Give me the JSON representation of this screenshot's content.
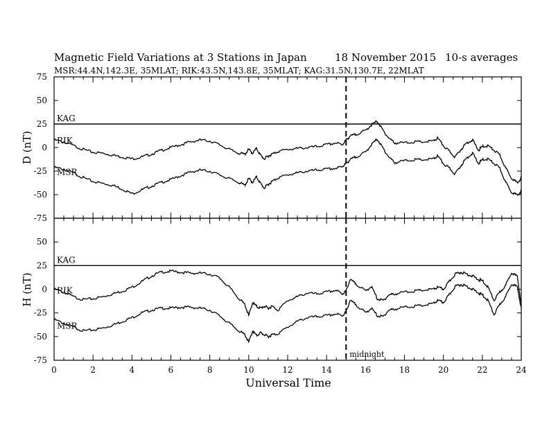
{
  "header": {
    "title": "Magnetic Field Variations at 3 Stations in Japan",
    "date": "18 November 2015",
    "averaging": "10-s averages",
    "stations": "MSR:44.4N,142.3E, 35MLAT;  RIK:43.5N,143.8E, 35MLAT;  KAG:31.5N,130.7E, 22MLAT"
  },
  "chart_data": [
    {
      "type": "line",
      "panel": "D",
      "ylabel": "D (nT)",
      "ylim": [
        -75,
        75
      ],
      "yticks": [
        -75,
        -50,
        -25,
        0,
        25,
        50,
        75
      ],
      "xlim": [
        0,
        24
      ],
      "reference_line": {
        "label": "KAG",
        "y": 25
      },
      "series": [
        {
          "name": "RIK",
          "x": [
            0,
            0.5,
            1,
            1.5,
            2,
            2.5,
            3,
            3.5,
            4,
            4.5,
            5,
            5.5,
            6,
            6.5,
            7,
            7.5,
            8,
            8.5,
            9,
            9.5,
            9.8,
            10,
            10.2,
            10.4,
            10.6,
            10.8,
            11,
            11.2,
            11.5,
            12,
            12.5,
            13,
            13.5,
            14,
            14.5,
            14.8,
            15,
            15.2,
            15.5,
            16,
            16.3,
            16.6,
            16.9,
            17.2,
            17.5,
            18,
            18.5,
            19,
            19.5,
            19.7,
            20,
            20.3,
            20.6,
            20.9,
            21.2,
            21.5,
            21.8,
            22,
            22.3,
            22.6,
            22.9,
            23.2,
            23.5,
            23.8,
            24
          ],
          "y": [
            8,
            6,
            2,
            -2,
            -5,
            -6,
            -8,
            -10,
            -12,
            -10,
            -7,
            -3,
            0,
            3,
            6,
            8,
            7,
            3,
            -2,
            -6,
            -7,
            -2,
            -6,
            -1,
            -8,
            -12,
            -9,
            -7,
            -4,
            -2,
            -1,
            0,
            1,
            3,
            5,
            3,
            8,
            12,
            14,
            18,
            24,
            28,
            18,
            10,
            5,
            5,
            6,
            6,
            7,
            10,
            2,
            -4,
            -10,
            -2,
            5,
            8,
            -3,
            1,
            2,
            -3,
            -8,
            -22,
            -32,
            -38,
            -32
          ]
        },
        {
          "name": "MSR",
          "x": [
            0,
            0.5,
            1,
            1.5,
            2,
            2.5,
            3,
            3.5,
            4,
            4.5,
            5,
            5.5,
            6,
            6.5,
            7,
            7.5,
            8,
            8.5,
            9,
            9.5,
            9.8,
            10,
            10.2,
            10.4,
            10.6,
            10.8,
            11,
            11.2,
            11.5,
            12,
            12.5,
            13,
            13.5,
            14,
            14.5,
            14.8,
            15,
            15.2,
            15.5,
            16,
            16.3,
            16.6,
            16.9,
            17.2,
            17.5,
            18,
            18.5,
            19,
            19.5,
            19.7,
            20,
            20.3,
            20.6,
            20.9,
            21.2,
            21.5,
            21.8,
            22,
            22.3,
            22.6,
            22.9,
            23.2,
            23.5,
            23.8,
            24
          ],
          "y": [
            -21,
            -23,
            -27,
            -32,
            -36,
            -38,
            -40,
            -44,
            -49,
            -45,
            -41,
            -37,
            -34,
            -30,
            -26,
            -24,
            -25,
            -29,
            -33,
            -37,
            -40,
            -33,
            -37,
            -31,
            -38,
            -43,
            -39,
            -36,
            -32,
            -29,
            -27,
            -25,
            -24,
            -23,
            -22,
            -20,
            -17,
            -13,
            -10,
            -5,
            3,
            9,
            -1,
            -10,
            -16,
            -14,
            -13,
            -13,
            -12,
            -9,
            -17,
            -22,
            -28,
            -19,
            -11,
            -6,
            -17,
            -13,
            -12,
            -17,
            -22,
            -37,
            -47,
            -51,
            -46
          ]
        }
      ]
    },
    {
      "type": "line",
      "panel": "H",
      "ylabel": "H (nT)",
      "ylim": [
        -75,
        75
      ],
      "yticks": [
        -75,
        -50,
        -25,
        0,
        25,
        50,
        75
      ],
      "xlim": [
        0,
        24
      ],
      "xticks": [
        0,
        2,
        4,
        6,
        8,
        10,
        12,
        14,
        16,
        18,
        20,
        22,
        24
      ],
      "xlabel": "Universal Time",
      "reference_line": {
        "label": "KAG",
        "y": 25
      },
      "marker": {
        "x": 15,
        "label": "midnight"
      },
      "series": [
        {
          "name": "RIK",
          "x": [
            0,
            0.5,
            1,
            1.5,
            2,
            2.5,
            3,
            3.5,
            4,
            4.5,
            5,
            5.5,
            6,
            6.5,
            7,
            7.5,
            8,
            8.5,
            9,
            9.5,
            9.8,
            10,
            10.2,
            10.4,
            10.6,
            10.8,
            11,
            11.2,
            11.5,
            12,
            12.5,
            13,
            13.5,
            14,
            14.5,
            14.8,
            15,
            15.2,
            15.5,
            16,
            16.3,
            16.6,
            16.9,
            17.2,
            17.5,
            18,
            18.5,
            19,
            19.5,
            19.7,
            20,
            20.3,
            20.6,
            20.9,
            21.2,
            21.5,
            21.8,
            22,
            22.3,
            22.6,
            22.9,
            23.2,
            23.5,
            23.8,
            24
          ],
          "y": [
            0,
            -3,
            -8,
            -11,
            -10,
            -8,
            -5,
            -2,
            2,
            8,
            14,
            18,
            19,
            18,
            17,
            17,
            16,
            12,
            2,
            -10,
            -16,
            -28,
            -14,
            -18,
            -20,
            -18,
            -20,
            -18,
            -22,
            -12,
            -8,
            -4,
            -5,
            -3,
            -1,
            -5,
            -2,
            10,
            6,
            -2,
            3,
            -10,
            -12,
            -6,
            -5,
            -3,
            -2,
            -1,
            0,
            2,
            0,
            8,
            16,
            18,
            16,
            14,
            10,
            9,
            2,
            -12,
            -3,
            4,
            18,
            13,
            -16
          ]
        },
        {
          "name": "MSR",
          "x": [
            0,
            0.5,
            1,
            1.5,
            2,
            2.5,
            3,
            3.5,
            4,
            4.5,
            5,
            5.5,
            6,
            6.5,
            7,
            7.5,
            8,
            8.5,
            9,
            9.5,
            9.8,
            10,
            10.2,
            10.4,
            10.6,
            10.8,
            11,
            11.2,
            11.5,
            12,
            12.5,
            13,
            13.5,
            14,
            14.5,
            14.8,
            15,
            15.2,
            15.5,
            16,
            16.3,
            16.6,
            16.9,
            17.2,
            17.5,
            18,
            18.5,
            19,
            19.5,
            19.7,
            20,
            20.3,
            20.6,
            20.9,
            21.2,
            21.5,
            21.8,
            22,
            22.3,
            22.6,
            22.9,
            23.2,
            23.5,
            23.8,
            24
          ],
          "y": [
            -32,
            -36,
            -40,
            -44,
            -43,
            -41,
            -38,
            -34,
            -30,
            -25,
            -22,
            -20,
            -20,
            -19,
            -19,
            -20,
            -22,
            -28,
            -36,
            -44,
            -48,
            -56,
            -44,
            -49,
            -46,
            -48,
            -50,
            -48,
            -47,
            -40,
            -34,
            -30,
            -29,
            -28,
            -26,
            -28,
            -24,
            -12,
            -16,
            -25,
            -20,
            -28,
            -29,
            -22,
            -21,
            -19,
            -18,
            -17,
            -15,
            -12,
            -14,
            -6,
            3,
            5,
            3,
            0,
            -4,
            -6,
            -12,
            -27,
            -16,
            -8,
            6,
            2,
            -20
          ]
        }
      ]
    }
  ]
}
